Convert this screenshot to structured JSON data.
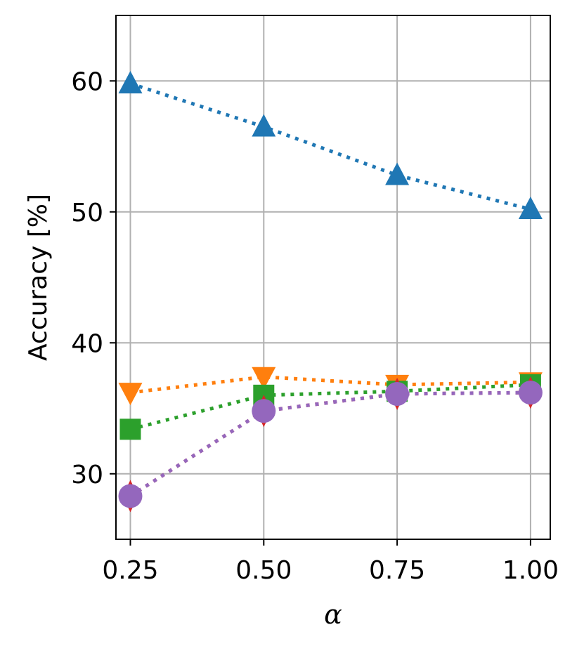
{
  "chart_data": {
    "type": "line",
    "title": "",
    "xlabel": "α",
    "ylabel": "Accuracy [%]",
    "x": [
      0.25,
      0.5,
      0.75,
      1.0
    ],
    "x_tick_values": [
      0.25,
      0.5,
      0.75,
      1.0
    ],
    "x_tick_labels": [
      "0.25",
      "0.50",
      "0.75",
      "1.00"
    ],
    "xlim": [
      0.223,
      1.037
    ],
    "y_tick_values": [
      30,
      40,
      50,
      60
    ],
    "y_tick_labels": [
      "30",
      "40",
      "50",
      "60"
    ],
    "ylim": [
      25,
      65
    ],
    "grid": true,
    "series": [
      {
        "name": "blue-triangle-up",
        "color": "#1f77b4",
        "marker": "triangle-up",
        "values": [
          59.8,
          56.5,
          52.8,
          50.2
        ]
      },
      {
        "name": "orange-triangle-down",
        "color": "#ff7f0e",
        "marker": "triangle-down",
        "values": [
          36.2,
          37.4,
          36.8,
          37.0
        ]
      },
      {
        "name": "green-square",
        "color": "#2ca02c",
        "marker": "square",
        "values": [
          33.4,
          36.0,
          36.3,
          36.8
        ]
      },
      {
        "name": "red-diamond",
        "color": "#d62728",
        "marker": "diamond",
        "values": [
          28.3,
          34.8,
          36.1,
          36.2
        ]
      },
      {
        "name": "purple-circle",
        "color": "#9467bd",
        "marker": "circle",
        "values": [
          28.3,
          34.8,
          36.1,
          36.2
        ]
      }
    ]
  }
}
